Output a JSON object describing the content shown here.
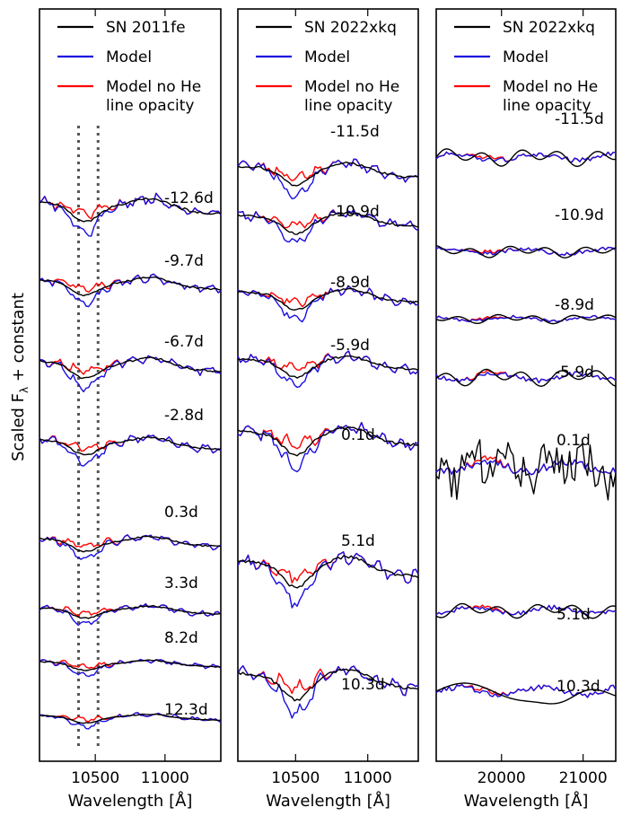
{
  "figure": {
    "ylabel_text": "Scaled F",
    "ylabel_sub": "λ",
    "ylabel_rest": " +  constant"
  },
  "colors": {
    "observed": "#000000",
    "model": "#1a0fe0",
    "model_no_he": "#ff0000",
    "marker_lines": "#555555"
  },
  "chart_data": [
    {
      "type": "line",
      "xlabel": "Wavelength [Å]",
      "ylabel": "Scaled Fλ +  constant",
      "xlim": [
        10100,
        11400
      ],
      "xticks": [
        10500,
        11000
      ],
      "xtick_labels": [
        "10500",
        "11000"
      ],
      "vlines": [
        10380,
        10520
      ],
      "legend": {
        "placement": "top",
        "entries": [
          {
            "label": "SN 2011fe",
            "color": "#000000"
          },
          {
            "label": "Model",
            "color": "#1a0fe0"
          },
          {
            "label": "Model no He\nline opacity",
            "color": "#ff0000"
          }
        ]
      },
      "epochs": [
        "-12.6d",
        "-9.7d",
        "-6.7d",
        "-2.8d",
        "0.3d",
        "3.3d",
        "8.2d",
        "12.3d"
      ],
      "series_per_epoch": [
        "SN 2011fe",
        "Model",
        "Model no He line opacity"
      ]
    },
    {
      "type": "line",
      "xlabel": "Wavelength [Å]",
      "xlim": [
        10100,
        11350
      ],
      "xticks": [
        10500,
        11000
      ],
      "xtick_labels": [
        "10500",
        "11000"
      ],
      "legend": {
        "placement": "top",
        "entries": [
          {
            "label": "SN 2022xkq",
            "color": "#000000"
          },
          {
            "label": "Model",
            "color": "#1a0fe0"
          },
          {
            "label": "Model no He\nline opacity",
            "color": "#ff0000"
          }
        ]
      },
      "epochs": [
        "-11.5d",
        "-10.9d",
        "-8.9d",
        "-5.9d",
        "0.1d",
        "5.1d",
        "10.3d"
      ],
      "series_per_epoch": [
        "SN 2022xkq",
        "Model",
        "Model no He line opacity"
      ]
    },
    {
      "type": "line",
      "xlabel": "Wavelength [Å]",
      "xlim": [
        19200,
        21400
      ],
      "xticks": [
        20000,
        21000
      ],
      "xtick_labels": [
        "20000",
        "21000"
      ],
      "legend": {
        "placement": "top",
        "entries": [
          {
            "label": "SN 2022xkq",
            "color": "#000000"
          },
          {
            "label": "Model",
            "color": "#1a0fe0"
          },
          {
            "label": "Model no He\nline opacity",
            "color": "#ff0000"
          }
        ]
      },
      "epochs": [
        "-11.5d",
        "-10.9d",
        "-8.9d",
        "-5.9d",
        "0.1d",
        "5.1d",
        "10.3d"
      ],
      "series_per_epoch": [
        "SN 2022xkq",
        "Model",
        "Model no He line opacity"
      ]
    }
  ]
}
